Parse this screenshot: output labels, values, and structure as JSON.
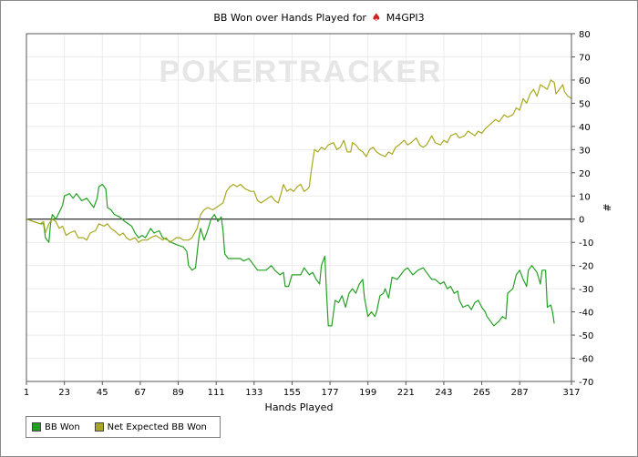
{
  "chart_data": {
    "type": "line",
    "title": "BB Won over Hands Played for",
    "player": "M4GPI3",
    "xlabel": "Hands Played",
    "ylabel": "#",
    "xlim": [
      1,
      317
    ],
    "ylim": [
      -70,
      80
    ],
    "x_ticks": [
      1,
      23,
      45,
      67,
      89,
      111,
      133,
      155,
      177,
      199,
      221,
      243,
      265,
      287,
      317
    ],
    "y_ticks": [
      80,
      70,
      60,
      50,
      40,
      30,
      20,
      10,
      0,
      -10,
      -20,
      -30,
      -40,
      -50,
      -60,
      -70
    ],
    "grid": true,
    "legend_position": "bottom-left",
    "series": [
      {
        "name": "BB Won",
        "color": "#22a022",
        "points": [
          [
            1,
            0
          ],
          [
            5,
            -1
          ],
          [
            9,
            -2
          ],
          [
            11,
            -2
          ],
          [
            12,
            -8
          ],
          [
            14,
            -10
          ],
          [
            15,
            -2
          ],
          [
            16,
            2
          ],
          [
            18,
            0
          ],
          [
            20,
            3
          ],
          [
            22,
            6
          ],
          [
            23,
            10
          ],
          [
            26,
            11
          ],
          [
            28,
            9
          ],
          [
            30,
            11
          ],
          [
            33,
            8
          ],
          [
            36,
            9
          ],
          [
            38,
            7
          ],
          [
            40,
            5
          ],
          [
            42,
            9
          ],
          [
            43,
            14
          ],
          [
            45,
            15
          ],
          [
            47,
            13
          ],
          [
            48,
            5
          ],
          [
            50,
            4
          ],
          [
            52,
            2
          ],
          [
            55,
            1
          ],
          [
            58,
            -1
          ],
          [
            60,
            -2
          ],
          [
            62,
            -3
          ],
          [
            64,
            -6
          ],
          [
            66,
            -8
          ],
          [
            68,
            -7
          ],
          [
            70,
            -8
          ],
          [
            73,
            -4
          ],
          [
            75,
            -6
          ],
          [
            78,
            -5
          ],
          [
            80,
            -8
          ],
          [
            83,
            -9
          ],
          [
            85,
            -10
          ],
          [
            88,
            -11
          ],
          [
            92,
            -12
          ],
          [
            94,
            -14
          ],
          [
            95,
            -20
          ],
          [
            97,
            -22
          ],
          [
            99,
            -21
          ],
          [
            101,
            -8
          ],
          [
            102,
            -4
          ],
          [
            104,
            -9
          ],
          [
            106,
            -5
          ],
          [
            108,
            0
          ],
          [
            110,
            2
          ],
          [
            112,
            -1
          ],
          [
            114,
            1
          ],
          [
            115,
            -5
          ],
          [
            116,
            -15
          ],
          [
            118,
            -17
          ],
          [
            120,
            -17
          ],
          [
            125,
            -17
          ],
          [
            127,
            -18
          ],
          [
            130,
            -17
          ],
          [
            133,
            -20
          ],
          [
            135,
            -22
          ],
          [
            140,
            -22
          ],
          [
            143,
            -20
          ],
          [
            145,
            -22
          ],
          [
            148,
            -24
          ],
          [
            150,
            -23
          ],
          [
            151,
            -29
          ],
          [
            153,
            -29
          ],
          [
            155,
            -24
          ],
          [
            158,
            -24
          ],
          [
            160,
            -24
          ],
          [
            162,
            -21
          ],
          [
            165,
            -24
          ],
          [
            167,
            -23
          ],
          [
            169,
            -26
          ],
          [
            171,
            -28
          ],
          [
            172,
            -20
          ],
          [
            174,
            -16
          ],
          [
            175,
            -32
          ],
          [
            176,
            -46
          ],
          [
            178,
            -46
          ],
          [
            180,
            -35
          ],
          [
            182,
            -36
          ],
          [
            184,
            -33
          ],
          [
            186,
            -38
          ],
          [
            188,
            -32
          ],
          [
            190,
            -30
          ],
          [
            192,
            -32
          ],
          [
            194,
            -28
          ],
          [
            196,
            -26
          ],
          [
            197,
            -34
          ],
          [
            199,
            -42
          ],
          [
            201,
            -40
          ],
          [
            203,
            -42
          ],
          [
            204,
            -40
          ],
          [
            206,
            -33
          ],
          [
            208,
            -32
          ],
          [
            209,
            -30
          ],
          [
            211,
            -34
          ],
          [
            213,
            -25
          ],
          [
            216,
            -26
          ],
          [
            218,
            -24
          ],
          [
            220,
            -22
          ],
          [
            222,
            -21
          ],
          [
            225,
            -24
          ],
          [
            228,
            -22
          ],
          [
            231,
            -21
          ],
          [
            233,
            -23
          ],
          [
            236,
            -26
          ],
          [
            238,
            -26
          ],
          [
            241,
            -28
          ],
          [
            243,
            -27
          ],
          [
            245,
            -30
          ],
          [
            247,
            -29
          ],
          [
            249,
            -32
          ],
          [
            251,
            -31
          ],
          [
            252,
            -35
          ],
          [
            254,
            -38
          ],
          [
            257,
            -37
          ],
          [
            259,
            -39
          ],
          [
            261,
            -36
          ],
          [
            263,
            -35
          ],
          [
            265,
            -38
          ],
          [
            267,
            -40
          ],
          [
            268,
            -42
          ],
          [
            270,
            -44
          ],
          [
            272,
            -46
          ],
          [
            275,
            -44
          ],
          [
            277,
            -42
          ],
          [
            279,
            -43
          ],
          [
            280,
            -32
          ],
          [
            283,
            -30
          ],
          [
            285,
            -24
          ],
          [
            287,
            -22
          ],
          [
            289,
            -26
          ],
          [
            291,
            -29
          ],
          [
            292,
            -22
          ],
          [
            294,
            -20
          ],
          [
            297,
            -23
          ],
          [
            299,
            -28
          ],
          [
            300,
            -22
          ],
          [
            302,
            -22
          ],
          [
            303,
            -38
          ],
          [
            305,
            -37
          ],
          [
            306,
            -40
          ],
          [
            307,
            -45
          ]
        ]
      },
      {
        "name": "Net Expected BB Won",
        "color": "#a8a820",
        "points": [
          [
            1,
            0
          ],
          [
            5,
            -1
          ],
          [
            9,
            -2
          ],
          [
            11,
            -1
          ],
          [
            12,
            -6
          ],
          [
            14,
            -2
          ],
          [
            16,
            0
          ],
          [
            18,
            -1
          ],
          [
            20,
            -4
          ],
          [
            22,
            -3
          ],
          [
            24,
            -7
          ],
          [
            26,
            -6
          ],
          [
            29,
            -5
          ],
          [
            31,
            -8
          ],
          [
            34,
            -8
          ],
          [
            36,
            -9
          ],
          [
            38,
            -6
          ],
          [
            41,
            -5
          ],
          [
            43,
            -2
          ],
          [
            46,
            -3
          ],
          [
            48,
            -2
          ],
          [
            50,
            -4
          ],
          [
            52,
            -5
          ],
          [
            55,
            -7
          ],
          [
            57,
            -6
          ],
          [
            59,
            -8
          ],
          [
            61,
            -9
          ],
          [
            64,
            -8
          ],
          [
            66,
            -10
          ],
          [
            68,
            -9
          ],
          [
            71,
            -9
          ],
          [
            73,
            -8
          ],
          [
            76,
            -7
          ],
          [
            78,
            -8
          ],
          [
            80,
            -9
          ],
          [
            82,
            -8
          ],
          [
            84,
            -10
          ],
          [
            86,
            -9
          ],
          [
            88,
            -8
          ],
          [
            90,
            -8
          ],
          [
            92,
            -9
          ],
          [
            95,
            -9
          ],
          [
            97,
            -8
          ],
          [
            100,
            -4
          ],
          [
            102,
            2
          ],
          [
            104,
            4
          ],
          [
            106,
            5
          ],
          [
            109,
            4
          ],
          [
            111,
            5
          ],
          [
            113,
            6
          ],
          [
            115,
            7
          ],
          [
            117,
            12
          ],
          [
            119,
            14
          ],
          [
            121,
            15
          ],
          [
            123,
            14
          ],
          [
            125,
            15
          ],
          [
            128,
            13
          ],
          [
            131,
            12
          ],
          [
            133,
            12
          ],
          [
            135,
            8
          ],
          [
            137,
            7
          ],
          [
            139,
            8
          ],
          [
            141,
            9
          ],
          [
            143,
            10
          ],
          [
            145,
            8
          ],
          [
            147,
            7
          ],
          [
            149,
            12
          ],
          [
            150,
            15
          ],
          [
            152,
            12
          ],
          [
            154,
            13
          ],
          [
            156,
            12
          ],
          [
            158,
            14
          ],
          [
            160,
            15
          ],
          [
            162,
            12
          ],
          [
            164,
            13
          ],
          [
            165,
            14
          ],
          [
            166,
            20
          ],
          [
            168,
            30
          ],
          [
            170,
            29
          ],
          [
            172,
            31
          ],
          [
            174,
            30
          ],
          [
            176,
            32
          ],
          [
            179,
            33
          ],
          [
            181,
            30
          ],
          [
            183,
            31
          ],
          [
            185,
            34
          ],
          [
            187,
            29
          ],
          [
            189,
            29
          ],
          [
            190,
            33
          ],
          [
            192,
            32
          ],
          [
            194,
            30
          ],
          [
            196,
            29
          ],
          [
            198,
            27
          ],
          [
            200,
            30
          ],
          [
            202,
            31
          ],
          [
            204,
            29
          ],
          [
            206,
            28
          ],
          [
            209,
            27
          ],
          [
            211,
            29
          ],
          [
            213,
            28
          ],
          [
            215,
            31
          ],
          [
            217,
            32
          ],
          [
            220,
            34
          ],
          [
            222,
            32
          ],
          [
            224,
            33
          ],
          [
            227,
            35
          ],
          [
            229,
            32
          ],
          [
            231,
            31
          ],
          [
            233,
            32
          ],
          [
            236,
            36
          ],
          [
            238,
            33
          ],
          [
            241,
            32
          ],
          [
            243,
            34
          ],
          [
            245,
            33
          ],
          [
            247,
            36
          ],
          [
            250,
            37
          ],
          [
            252,
            35
          ],
          [
            255,
            36
          ],
          [
            257,
            38
          ],
          [
            259,
            37
          ],
          [
            261,
            36
          ],
          [
            263,
            38
          ],
          [
            265,
            37
          ],
          [
            267,
            39
          ],
          [
            270,
            41
          ],
          [
            273,
            43
          ],
          [
            275,
            42
          ],
          [
            278,
            45
          ],
          [
            280,
            44
          ],
          [
            283,
            45
          ],
          [
            285,
            48
          ],
          [
            287,
            47
          ],
          [
            289,
            52
          ],
          [
            291,
            50
          ],
          [
            293,
            54
          ],
          [
            295,
            56
          ],
          [
            297,
            53
          ],
          [
            299,
            58
          ],
          [
            301,
            57
          ],
          [
            303,
            56
          ],
          [
            305,
            60
          ],
          [
            307,
            59
          ],
          [
            308,
            54
          ],
          [
            310,
            56
          ],
          [
            312,
            58
          ],
          [
            313,
            55
          ],
          [
            315,
            53
          ],
          [
            317,
            52
          ]
        ]
      }
    ]
  },
  "watermark": "POKERTRACKER"
}
